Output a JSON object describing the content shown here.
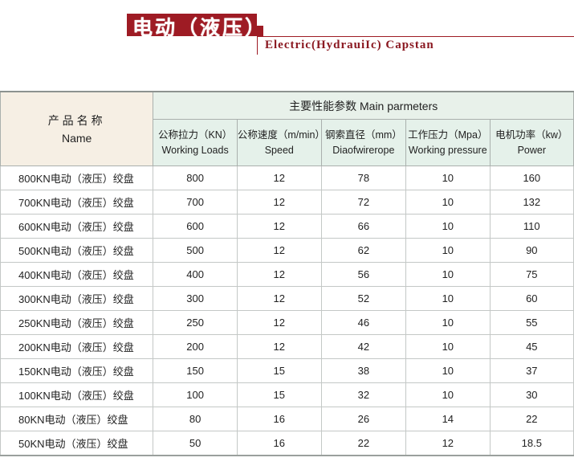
{
  "header": {
    "title_cn": "电动（液压）引船绞盘",
    "title_en": "Electric(HydrauiIc) Capstan"
  },
  "table": {
    "name_header_cn": "产品名称",
    "name_header_en": "Name",
    "main_header": "主要性能参数  Main parmeters",
    "columns": [
      {
        "cn": "公称拉力（KN）",
        "en": "Working Loads"
      },
      {
        "cn": "公称速度（m/min）",
        "en": "Speed"
      },
      {
        "cn": "钢索直径（mm）",
        "en": "Diaofwirerope"
      },
      {
        "cn": "工作压力（Mpa）",
        "en": "Working pressure"
      },
      {
        "cn": "电机功率（kw）",
        "en": "Power"
      }
    ],
    "rows": [
      [
        "800KN电动（液压）绞盘",
        "800",
        "12",
        "78",
        "10",
        "160"
      ],
      [
        "700KN电动（液压）绞盘",
        "700",
        "12",
        "72",
        "10",
        "132"
      ],
      [
        "600KN电动（液压）绞盘",
        "600",
        "12",
        "66",
        "10",
        "110"
      ],
      [
        "500KN电动（液压）绞盘",
        "500",
        "12",
        "62",
        "10",
        "90"
      ],
      [
        "400KN电动（液压）绞盘",
        "400",
        "12",
        "56",
        "10",
        "75"
      ],
      [
        "300KN电动（液压）绞盘",
        "300",
        "12",
        "52",
        "10",
        "60"
      ],
      [
        "250KN电动（液压）绞盘",
        "250",
        "12",
        "46",
        "10",
        "55"
      ],
      [
        "200KN电动（液压）绞盘",
        "200",
        "12",
        "42",
        "10",
        "45"
      ],
      [
        "150KN电动（液压）绞盘",
        "150",
        "15",
        "38",
        "10",
        "37"
      ],
      [
        "100KN电动（液压）绞盘",
        "100",
        "15",
        "32",
        "10",
        "30"
      ],
      [
        "80KN电动（液压）绞盘",
        "80",
        "16",
        "26",
        "14",
        "22"
      ],
      [
        "50KN电动（液压）绞盘",
        "50",
        "16",
        "22",
        "12",
        "18.5"
      ]
    ]
  }
}
